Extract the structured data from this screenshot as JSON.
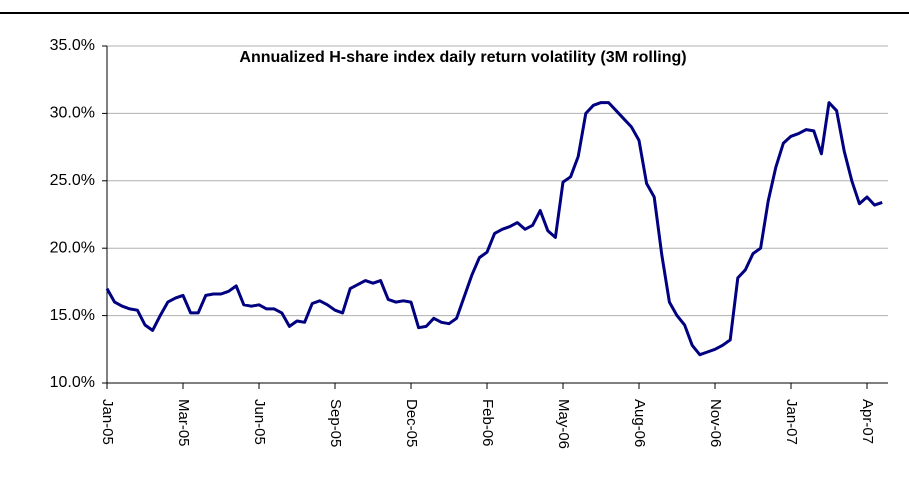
{
  "chart_data": {
    "type": "line",
    "title": "Annualized H-share index daily return volatility (3M rolling)",
    "categories": [
      "Jan-05",
      null,
      null,
      null,
      null,
      null,
      null,
      null,
      null,
      null,
      "Mar-05",
      null,
      null,
      null,
      null,
      null,
      null,
      null,
      null,
      null,
      "Jun-05",
      null,
      null,
      null,
      null,
      null,
      null,
      null,
      null,
      null,
      "Sep-05",
      null,
      null,
      null,
      null,
      null,
      null,
      null,
      null,
      null,
      "Dec-05",
      null,
      null,
      null,
      null,
      null,
      null,
      null,
      null,
      null,
      "Feb-06",
      null,
      null,
      null,
      null,
      null,
      null,
      null,
      null,
      null,
      "May-06",
      null,
      null,
      null,
      null,
      null,
      null,
      null,
      null,
      null,
      "Aug-06",
      null,
      null,
      null,
      null,
      null,
      null,
      null,
      null,
      null,
      "Nov-06",
      null,
      null,
      null,
      null,
      null,
      null,
      null,
      null,
      null,
      "Jan-07",
      null,
      null,
      null,
      null,
      null,
      null,
      null,
      null,
      null,
      "Apr-07",
      null,
      null
    ],
    "values": [
      17.0,
      16.0,
      15.7,
      15.5,
      15.4,
      14.3,
      13.9,
      15.0,
      16.0,
      16.3,
      16.5,
      15.2,
      15.2,
      16.5,
      16.6,
      16.6,
      16.8,
      17.2,
      15.8,
      15.7,
      15.8,
      15.5,
      15.5,
      15.2,
      14.2,
      14.6,
      14.5,
      15.9,
      16.1,
      15.8,
      15.4,
      15.2,
      17.0,
      17.3,
      17.6,
      17.4,
      17.6,
      16.2,
      16.0,
      16.1,
      16.0,
      14.1,
      14.2,
      14.8,
      14.5,
      14.4,
      14.8,
      16.4,
      18.0,
      19.3,
      19.7,
      21.1,
      21.4,
      21.6,
      21.9,
      21.4,
      21.7,
      22.8,
      21.3,
      20.8,
      24.9,
      25.3,
      26.8,
      30.0,
      30.6,
      30.8,
      30.8,
      30.2,
      29.6,
      29.0,
      28.0,
      24.8,
      23.8,
      19.5,
      16.0,
      15.0,
      14.3,
      12.8,
      12.1,
      12.3,
      12.5,
      12.8,
      13.2,
      17.8,
      18.4,
      19.6,
      20.0,
      23.5,
      26.0,
      27.8,
      28.3,
      28.5,
      28.8,
      28.7,
      27.0,
      30.8,
      30.2,
      27.2,
      25.0,
      23.3,
      23.8,
      23.2,
      23.4
    ],
    "color": "#000080",
    "ylim": [
      10,
      35
    ],
    "yticks": [
      {
        "value": 10,
        "label": "10.0%"
      },
      {
        "value": 15,
        "label": "15.0%"
      },
      {
        "value": 20,
        "label": "20.0%"
      },
      {
        "value": 25,
        "label": "25.0%"
      },
      {
        "value": 30,
        "label": "30.0%"
      },
      {
        "value": 35,
        "label": "35.0%"
      }
    ],
    "grid": true
  }
}
